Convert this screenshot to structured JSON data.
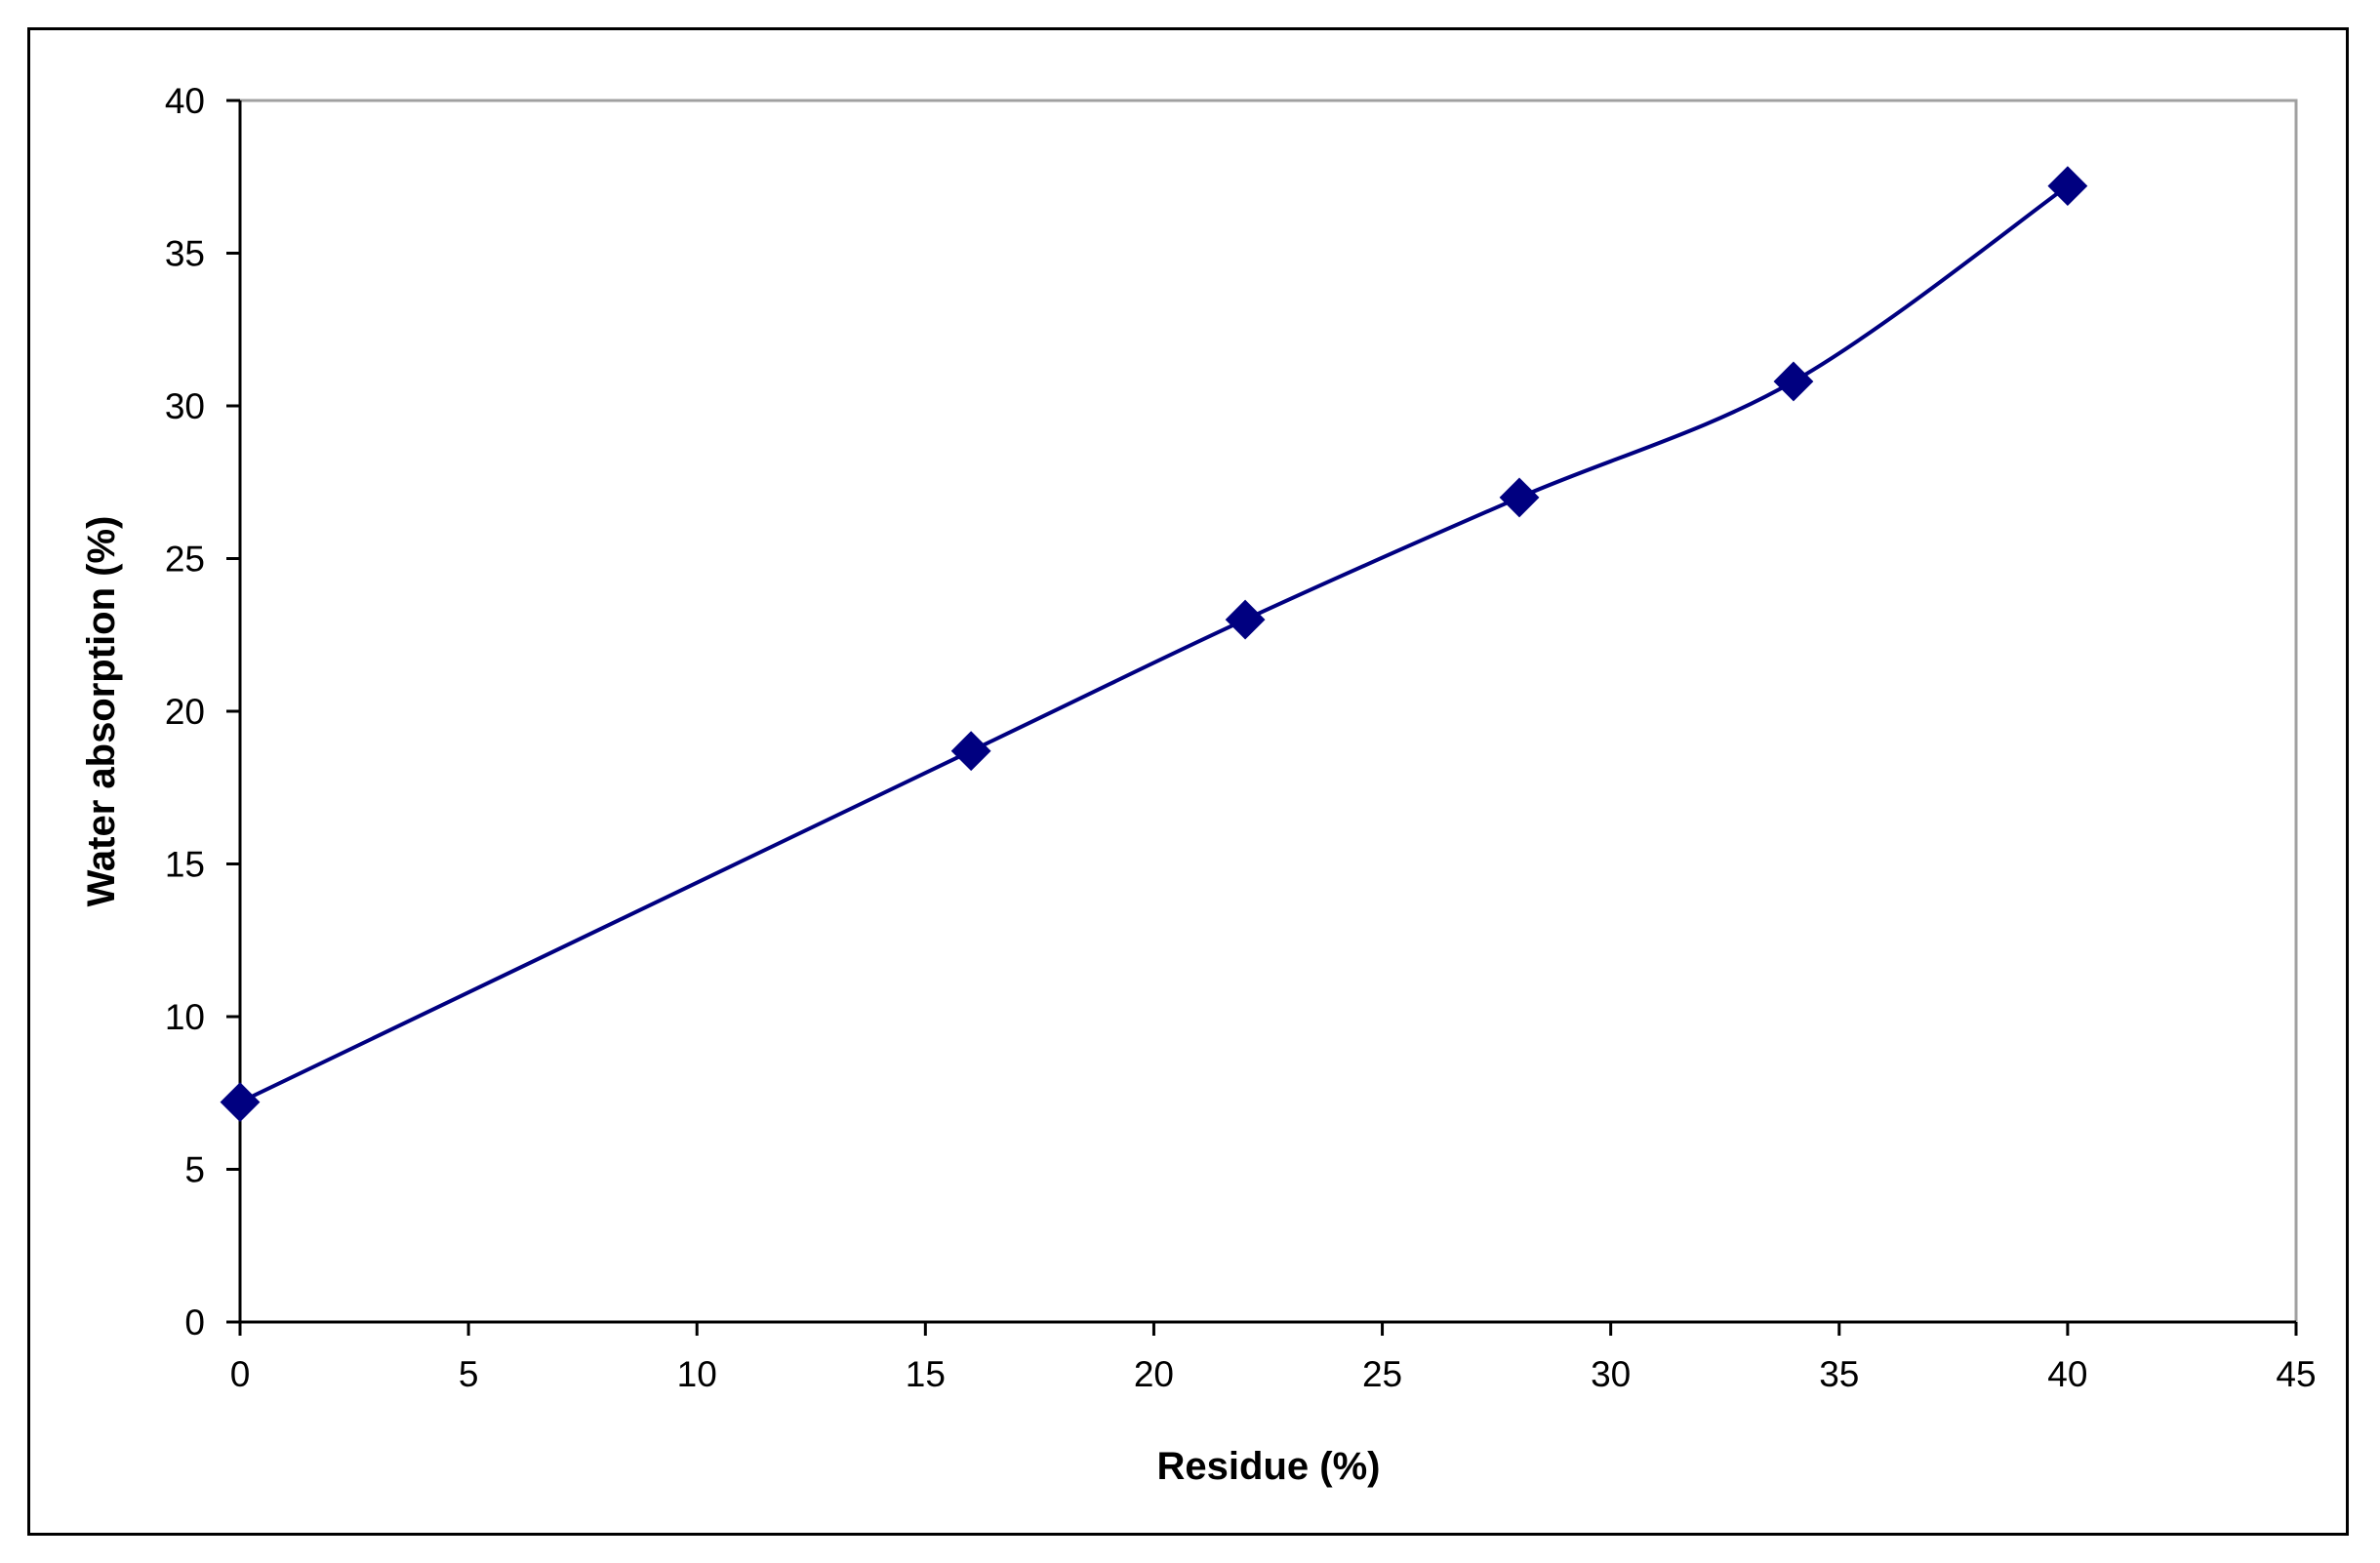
{
  "chart_data": {
    "type": "line",
    "title": "",
    "xlabel": "Residue (%)",
    "ylabel": "Water absorption (%)",
    "xlim": [
      0,
      45
    ],
    "ylim": [
      0,
      40
    ],
    "x_ticks": [
      "0",
      "5",
      "10",
      "15",
      "20",
      "25",
      "30",
      "35",
      "40",
      "45"
    ],
    "y_ticks": [
      "0",
      "5",
      "10",
      "15",
      "20",
      "25",
      "30",
      "35",
      "40"
    ],
    "grid": false,
    "legend": "none",
    "smooth": true,
    "marker": "diamond",
    "series": [
      {
        "x": [
          0,
          16,
          22,
          28,
          34,
          40
        ],
        "y": [
          7.2,
          18.7,
          23.0,
          27.0,
          30.8,
          37.2
        ],
        "color": "#000080"
      }
    ]
  }
}
